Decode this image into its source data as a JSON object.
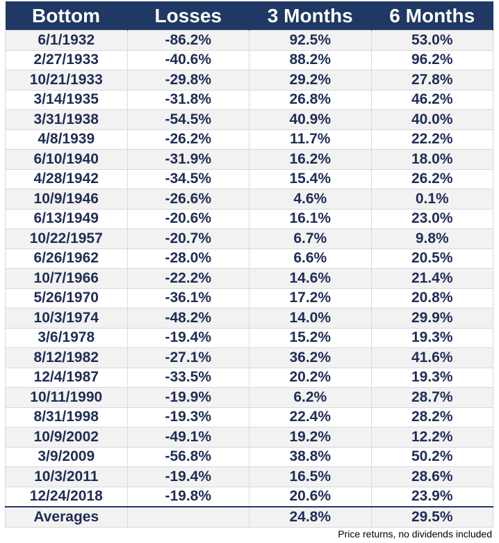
{
  "table": {
    "header": [
      "Bottom",
      "Losses",
      "3 Months",
      "6 Months"
    ],
    "rows": [
      [
        "6/1/1932",
        "-86.2%",
        "92.5%",
        "53.0%"
      ],
      [
        "2/27/1933",
        "-40.6%",
        "88.2%",
        "96.2%"
      ],
      [
        "10/21/1933",
        "-29.8%",
        "29.2%",
        "27.8%"
      ],
      [
        "3/14/1935",
        "-31.8%",
        "26.8%",
        "46.2%"
      ],
      [
        "3/31/1938",
        "-54.5%",
        "40.9%",
        "40.0%"
      ],
      [
        "4/8/1939",
        "-26.2%",
        "11.7%",
        "22.2%"
      ],
      [
        "6/10/1940",
        "-31.9%",
        "16.2%",
        "18.0%"
      ],
      [
        "4/28/1942",
        "-34.5%",
        "15.4%",
        "26.2%"
      ],
      [
        "10/9/1946",
        "-26.6%",
        "4.6%",
        "0.1%"
      ],
      [
        "6/13/1949",
        "-20.6%",
        "16.1%",
        "23.0%"
      ],
      [
        "10/22/1957",
        "-20.7%",
        "6.7%",
        "9.8%"
      ],
      [
        "6/26/1962",
        "-28.0%",
        "6.6%",
        "20.5%"
      ],
      [
        "10/7/1966",
        "-22.2%",
        "14.6%",
        "21.4%"
      ],
      [
        "5/26/1970",
        "-36.1%",
        "17.2%",
        "20.8%"
      ],
      [
        "10/3/1974",
        "-48.2%",
        "14.0%",
        "29.9%"
      ],
      [
        "3/6/1978",
        "-19.4%",
        "15.2%",
        "19.3%"
      ],
      [
        "8/12/1982",
        "-27.1%",
        "36.2%",
        "41.6%"
      ],
      [
        "12/4/1987",
        "-33.5%",
        "20.2%",
        "19.3%"
      ],
      [
        "10/11/1990",
        "-19.9%",
        "6.2%",
        "28.7%"
      ],
      [
        "8/31/1998",
        "-19.3%",
        "22.4%",
        "28.2%"
      ],
      [
        "10/9/2002",
        "-49.1%",
        "19.2%",
        "12.2%"
      ],
      [
        "3/9/2009",
        "-56.8%",
        "38.8%",
        "50.2%"
      ],
      [
        "10/3/2011",
        "-19.4%",
        "16.5%",
        "28.6%"
      ],
      [
        "12/24/2018",
        "-19.8%",
        "20.6%",
        "23.9%"
      ]
    ],
    "averages": {
      "label": "Averages",
      "three_months": "24.8%",
      "six_months": "29.5%"
    }
  },
  "footnote": "Price returns, no dividends included"
}
